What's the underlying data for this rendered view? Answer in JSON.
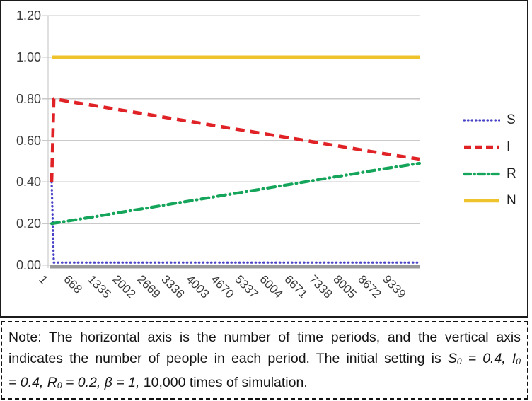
{
  "chart_data": {
    "type": "line",
    "title": "",
    "xlabel": "",
    "ylabel": "",
    "ylim": [
      0,
      1.2
    ],
    "xlim": [
      1,
      10000
    ],
    "grid": "horizontal",
    "legend_position": "right-outside",
    "ytick_labels": [
      "0.00",
      "0.20",
      "0.40",
      "0.60",
      "0.80",
      "1.00",
      "1.20"
    ],
    "ytick_values": [
      0,
      0.2,
      0.4,
      0.6,
      0.8,
      1.0,
      1.2
    ],
    "x_categories": [
      "1",
      "668",
      "1335",
      "2002",
      "2669",
      "3336",
      "4003",
      "4670",
      "5337",
      "6004",
      "6671",
      "7338",
      "8005",
      "8672",
      "9339"
    ],
    "x_category_values": [
      1,
      668,
      1335,
      2002,
      2669,
      3336,
      4003,
      4670,
      5337,
      6004,
      6671,
      7338,
      8005,
      8672,
      9339
    ],
    "series": [
      {
        "name": "S",
        "color": "#4742c6",
        "line_style": "dotted",
        "points": [
          [
            1,
            0.4
          ],
          [
            60,
            0.013
          ],
          [
            10000,
            0.013
          ]
        ]
      },
      {
        "name": "I",
        "color": "#e02227",
        "line_style": "dashed",
        "points": [
          [
            1,
            0.4
          ],
          [
            60,
            0.8
          ],
          [
            668,
            0.781
          ],
          [
            1335,
            0.762
          ],
          [
            2002,
            0.742
          ],
          [
            2669,
            0.723
          ],
          [
            3336,
            0.703
          ],
          [
            4003,
            0.684
          ],
          [
            4670,
            0.664
          ],
          [
            5337,
            0.645
          ],
          [
            6004,
            0.625
          ],
          [
            6671,
            0.606
          ],
          [
            7338,
            0.586
          ],
          [
            8005,
            0.567
          ],
          [
            8672,
            0.547
          ],
          [
            9339,
            0.528
          ],
          [
            10000,
            0.51
          ]
        ]
      },
      {
        "name": "R",
        "color": "#14a45a",
        "line_style": "dashdot",
        "points": [
          [
            1,
            0.2
          ],
          [
            668,
            0.219
          ],
          [
            1335,
            0.238
          ],
          [
            2002,
            0.258
          ],
          [
            2669,
            0.277
          ],
          [
            3336,
            0.297
          ],
          [
            4003,
            0.316
          ],
          [
            4670,
            0.336
          ],
          [
            5337,
            0.355
          ],
          [
            6004,
            0.375
          ],
          [
            6671,
            0.394
          ],
          [
            7338,
            0.414
          ],
          [
            8005,
            0.433
          ],
          [
            8672,
            0.453
          ],
          [
            9339,
            0.472
          ],
          [
            10000,
            0.49
          ]
        ]
      },
      {
        "name": "N",
        "color": "#efc32b",
        "line_style": "solid",
        "points": [
          [
            1,
            1.0
          ],
          [
            10000,
            1.0
          ]
        ]
      }
    ],
    "colors": {
      "gridline": "#c9c9c9",
      "y_axis_line": "#c2c2c2",
      "x_axis_bar": "#999999",
      "axis_text": "#3c3c3c"
    }
  },
  "legend": {
    "entries": [
      "S",
      "I",
      "R",
      "N"
    ]
  },
  "note": {
    "full_text": "Note: The horizontal axis is the number of time periods, and the vertical axis indicates the number of people in each period. The initial setting is S0 = 0.4, I0 = 0.4, R0 = 0.2, β = 1, 10,000 times of simulation.",
    "lines": [
      {
        "justify": true,
        "segments": [
          {
            "t": "Note: The horizontal axis is the number of time periods, and the vertical axis",
            "s": "r"
          }
        ]
      },
      {
        "justify": true,
        "segments": [
          {
            "t": "indicates the number of people in each period. The initial setting is ",
            "s": "r"
          },
          {
            "t": "S",
            "s": "i"
          },
          {
            "t": "0",
            "s": "isub"
          },
          {
            "t": " = 0.4, ",
            "s": "i"
          },
          {
            "t": "I",
            "s": "i"
          },
          {
            "t": "0",
            "s": "isub"
          }
        ]
      },
      {
        "justify": false,
        "segments": [
          {
            "t": "= 0.4, ",
            "s": "i"
          },
          {
            "t": "R",
            "s": "i"
          },
          {
            "t": "0",
            "s": "isub"
          },
          {
            "t": " = 0.2, ",
            "s": "i"
          },
          {
            "t": "β = 1,",
            "s": "i"
          },
          {
            "t": " 10,000 times of simulation.",
            "s": "r"
          }
        ]
      }
    ]
  }
}
